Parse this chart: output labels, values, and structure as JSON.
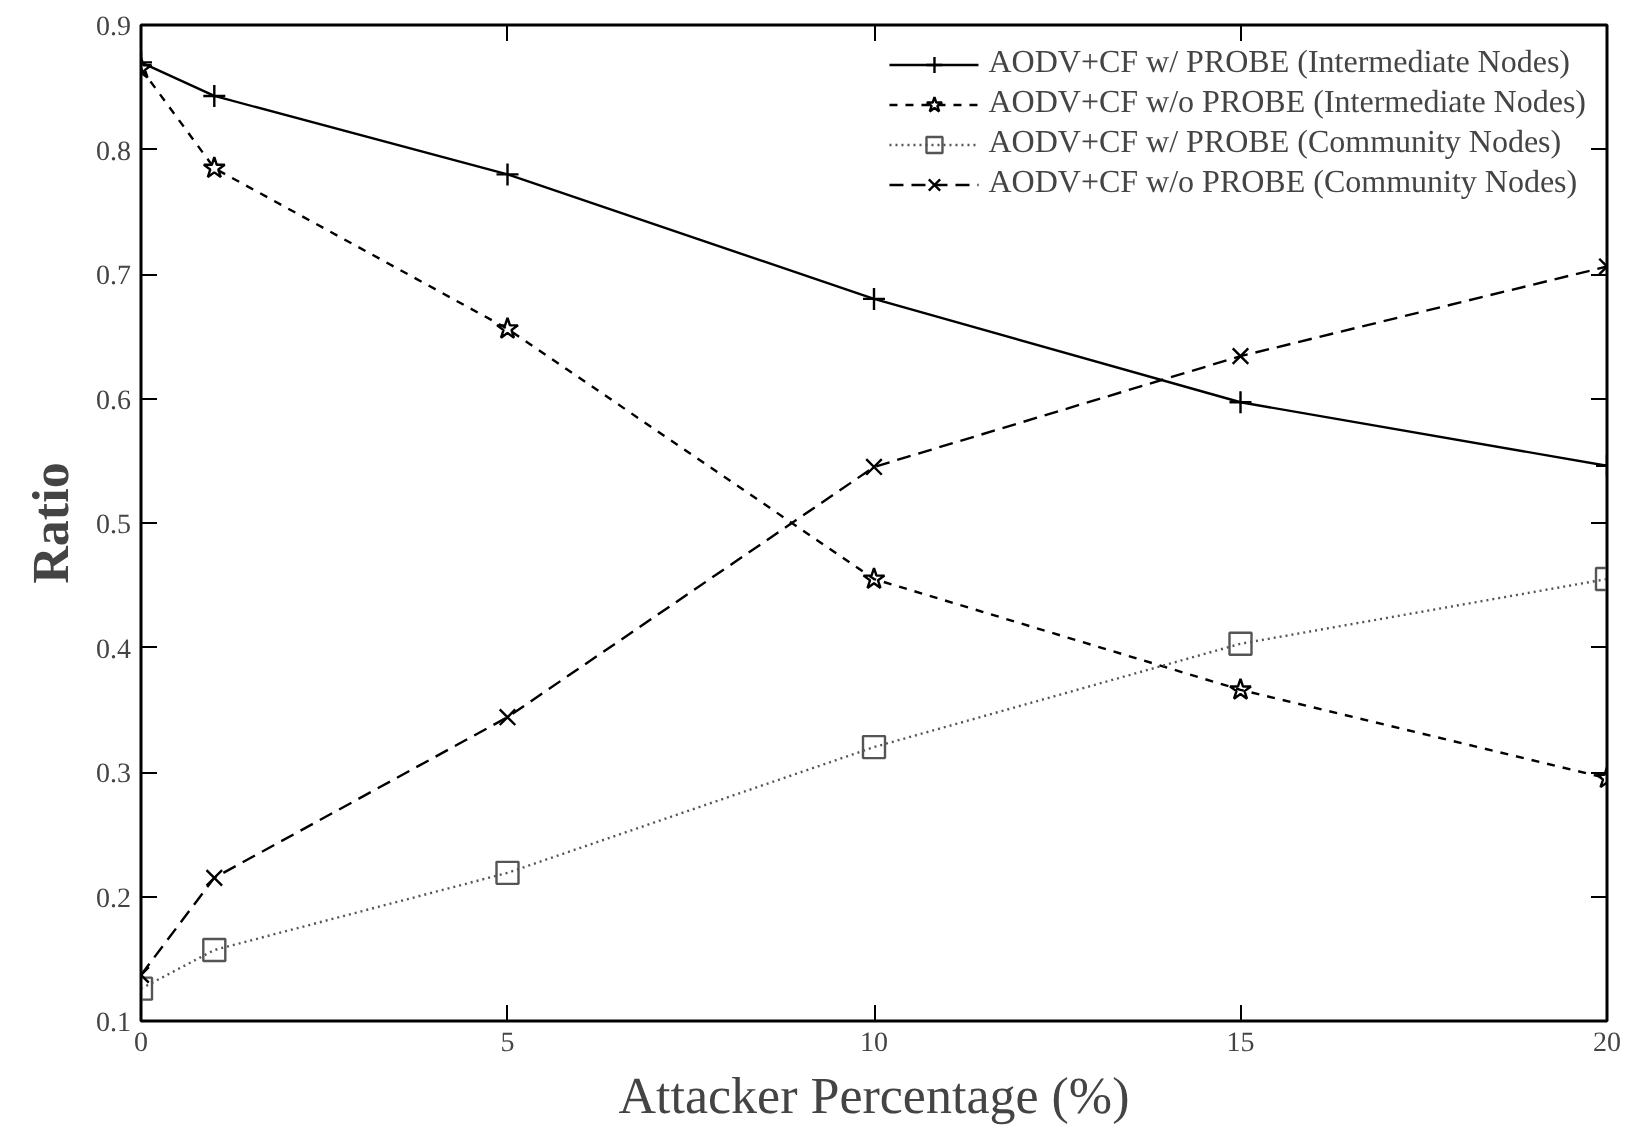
{
  "chart_data": {
    "type": "line",
    "xlabel": "Attacker Percentage (%)",
    "ylabel": "Ratio",
    "x": [
      0,
      1,
      5,
      10,
      15,
      20
    ],
    "xlim": [
      0,
      20
    ],
    "xticks": [
      0,
      5,
      10,
      15,
      20
    ],
    "ylim": [
      0.1,
      0.9
    ],
    "yticks": [
      0.1,
      0.2,
      0.3,
      0.4,
      0.5,
      0.6,
      0.7,
      0.8,
      0.9
    ],
    "grid": false,
    "legend": "top right",
    "series": [
      {
        "name": "AODV+CF w/ PROBE (Intermediate Nodes)",
        "color": "#000000",
        "marker": "cross",
        "line_style": "solid",
        "values": [
          0.87,
          0.843,
          0.78,
          0.68,
          0.597,
          0.546
        ]
      },
      {
        "name": "AODV+CF w/o PROBE (Intermediate Nodes)",
        "color": "#000000",
        "marker": "star",
        "line_style": "dashed",
        "values": [
          0.865,
          0.785,
          0.656,
          0.455,
          0.366,
          0.295
        ]
      },
      {
        "name": "AODV+CF w/ PROBE (Community Nodes)",
        "color": "#555555",
        "marker": "square",
        "line_style": "dotted",
        "values": [
          0.126,
          0.157,
          0.219,
          0.32,
          0.403,
          0.455
        ]
      },
      {
        "name": "AODV+CF w/o PROBE (Community Nodes)",
        "color": "#000000",
        "marker": "x",
        "line_style": "dashed",
        "values": [
          0.137,
          0.215,
          0.344,
          0.545,
          0.634,
          0.706
        ]
      }
    ]
  }
}
